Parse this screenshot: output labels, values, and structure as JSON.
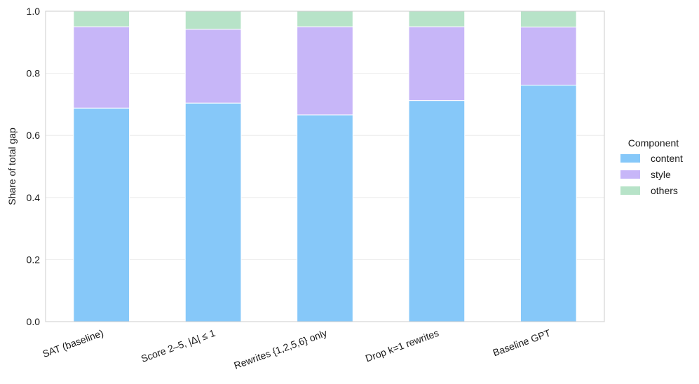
{
  "chart_data": {
    "type": "bar",
    "stacked": true,
    "categories": [
      "SAT (baseline)",
      "Score 2–5, |Δ| ≤ 1",
      "Rewrites {1,2,5,6} only",
      "Drop k=1 rewrites",
      "Baseline GPT"
    ],
    "series": [
      {
        "name": "content",
        "color": "#86c8f9",
        "values": [
          0.688,
          0.704,
          0.666,
          0.712,
          0.762
        ]
      },
      {
        "name": "style",
        "color": "#c7b6f8",
        "values": [
          0.262,
          0.238,
          0.284,
          0.238,
          0.187
        ]
      },
      {
        "name": "others",
        "color": "#b7e3c8",
        "values": [
          0.05,
          0.058,
          0.05,
          0.05,
          0.051
        ]
      }
    ],
    "ylabel": "Share of total gap",
    "xlabel": "",
    "ylim": [
      0,
      1.0
    ],
    "yticks": [
      "0.0",
      "0.2",
      "0.4",
      "0.6",
      "0.8",
      "1.0"
    ],
    "yticks_values": [
      0,
      0.2,
      0.4,
      0.6,
      0.8,
      1.0
    ],
    "legend": {
      "title": "Component",
      "placement": "right"
    },
    "grid": "horizontal",
    "xtick_rotation": -20
  }
}
